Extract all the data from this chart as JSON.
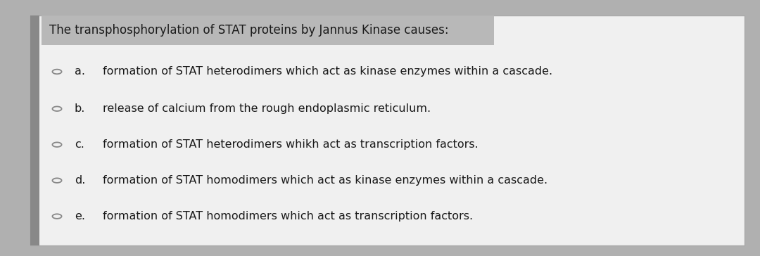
{
  "title": "The transphosphorylation of STAT proteins by Jannus Kinase causes:",
  "options": [
    {
      "label": "a.",
      "text": "formation of STAT heterodimers which act as kinase enzymes within a cascade."
    },
    {
      "label": "b.",
      "text": "release of calcium from the rough endoplasmic reticulum."
    },
    {
      "label": "c.",
      "text": "formation of STAT heterodimers whikh act as transcription factors."
    },
    {
      "label": "d.",
      "text": "formation of STAT homodimers which act as kinase enzymes within a cascade."
    },
    {
      "label": "e.",
      "text": "formation of STAT homodimers which act as transcription factors."
    }
  ],
  "bg_color": "#b0b0b0",
  "card_color": "#f0f0f0",
  "title_bg_color": "#b8b8b8",
  "text_color": "#1a1a1a",
  "circle_edge_color": "#888888",
  "title_fontsize": 12.0,
  "option_fontsize": 11.5,
  "fig_width": 10.8,
  "fig_height": 3.64,
  "dpi": 100,
  "left_bar_color": "#888888",
  "left_bar_width": 0.012
}
